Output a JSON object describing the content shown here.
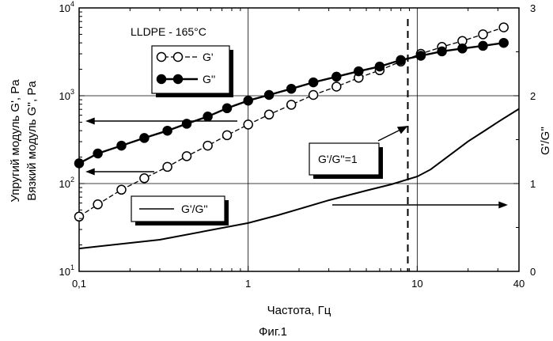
{
  "chart_data": {
    "type": "line",
    "title": "LLDPE - 165°C",
    "caption": "Фиг.1",
    "xlabel": "Частота, Гц",
    "ylabel_left_line1": "Упругий модуль G', Pa",
    "ylabel_left_line2": "Вязкий модуль G'', Pa",
    "ylabel_right": "G'/G''",
    "x_scale": "log",
    "xlim": [
      0.1,
      40
    ],
    "x_ticks": [
      {
        "value": 0.1,
        "label": "0,1"
      },
      {
        "value": 1,
        "label": "1"
      },
      {
        "value": 10,
        "label": "10"
      },
      {
        "value": 40,
        "label": "40"
      }
    ],
    "y_left_scale": "log",
    "y_left_lim": [
      10,
      10000
    ],
    "y_left_ticks": [
      {
        "value": 10,
        "base": "10",
        "exp": "1"
      },
      {
        "value": 100,
        "base": "10",
        "exp": "2"
      },
      {
        "value": 1000,
        "base": "10",
        "exp": "3"
      },
      {
        "value": 10000,
        "base": "10",
        "exp": "4"
      }
    ],
    "y_right_lim": [
      0,
      3
    ],
    "y_right_ticks": [
      {
        "value": 0,
        "label": "0"
      },
      {
        "value": 1,
        "label": "1"
      },
      {
        "value": 2,
        "label": "2"
      },
      {
        "value": 3,
        "label": "3"
      }
    ],
    "grid_x": [
      1,
      10
    ],
    "grid_y": [
      100,
      1000
    ],
    "crossover_x": 8.8,
    "crossover_label": "G'/G''=1",
    "series": [
      {
        "name": "G'",
        "marker": "open-circle",
        "axis": "left",
        "x": [
          0.1,
          0.129,
          0.178,
          0.243,
          0.333,
          0.433,
          0.577,
          0.75,
          1.0,
          1.33,
          1.8,
          2.43,
          3.33,
          4.5,
          6.0,
          8.0,
          10.5,
          14.0,
          18.5,
          24.5,
          32.5
        ],
        "y": [
          42,
          58,
          85,
          115,
          155,
          205,
          270,
          355,
          470,
          610,
          790,
          1020,
          1270,
          1600,
          1950,
          2450,
          3000,
          3600,
          4200,
          5000,
          6000
        ]
      },
      {
        "name": "G''",
        "marker": "filled-circle",
        "axis": "left",
        "x": [
          0.1,
          0.129,
          0.178,
          0.243,
          0.333,
          0.433,
          0.577,
          0.75,
          1.0,
          1.33,
          1.8,
          2.43,
          3.33,
          4.5,
          6.0,
          8.0,
          10.5,
          14.0,
          18.5,
          24.5,
          32.5
        ],
        "y": [
          170,
          220,
          270,
          330,
          400,
          480,
          580,
          720,
          880,
          1020,
          1200,
          1420,
          1650,
          1900,
          2150,
          2550,
          2850,
          3200,
          3450,
          3700,
          4000
        ]
      },
      {
        "name": "G'/G''",
        "marker": "none",
        "axis": "right",
        "x": [
          0.1,
          0.3,
          1.0,
          1.5,
          2.0,
          3.0,
          5.0,
          7.0,
          10.0,
          12.0,
          15.0,
          20.0,
          25.0,
          30.0,
          40.0
        ],
        "y": [
          0.26,
          0.36,
          0.55,
          0.64,
          0.71,
          0.81,
          0.92,
          0.99,
          1.08,
          1.16,
          1.3,
          1.48,
          1.6,
          1.7,
          1.85
        ]
      }
    ]
  }
}
